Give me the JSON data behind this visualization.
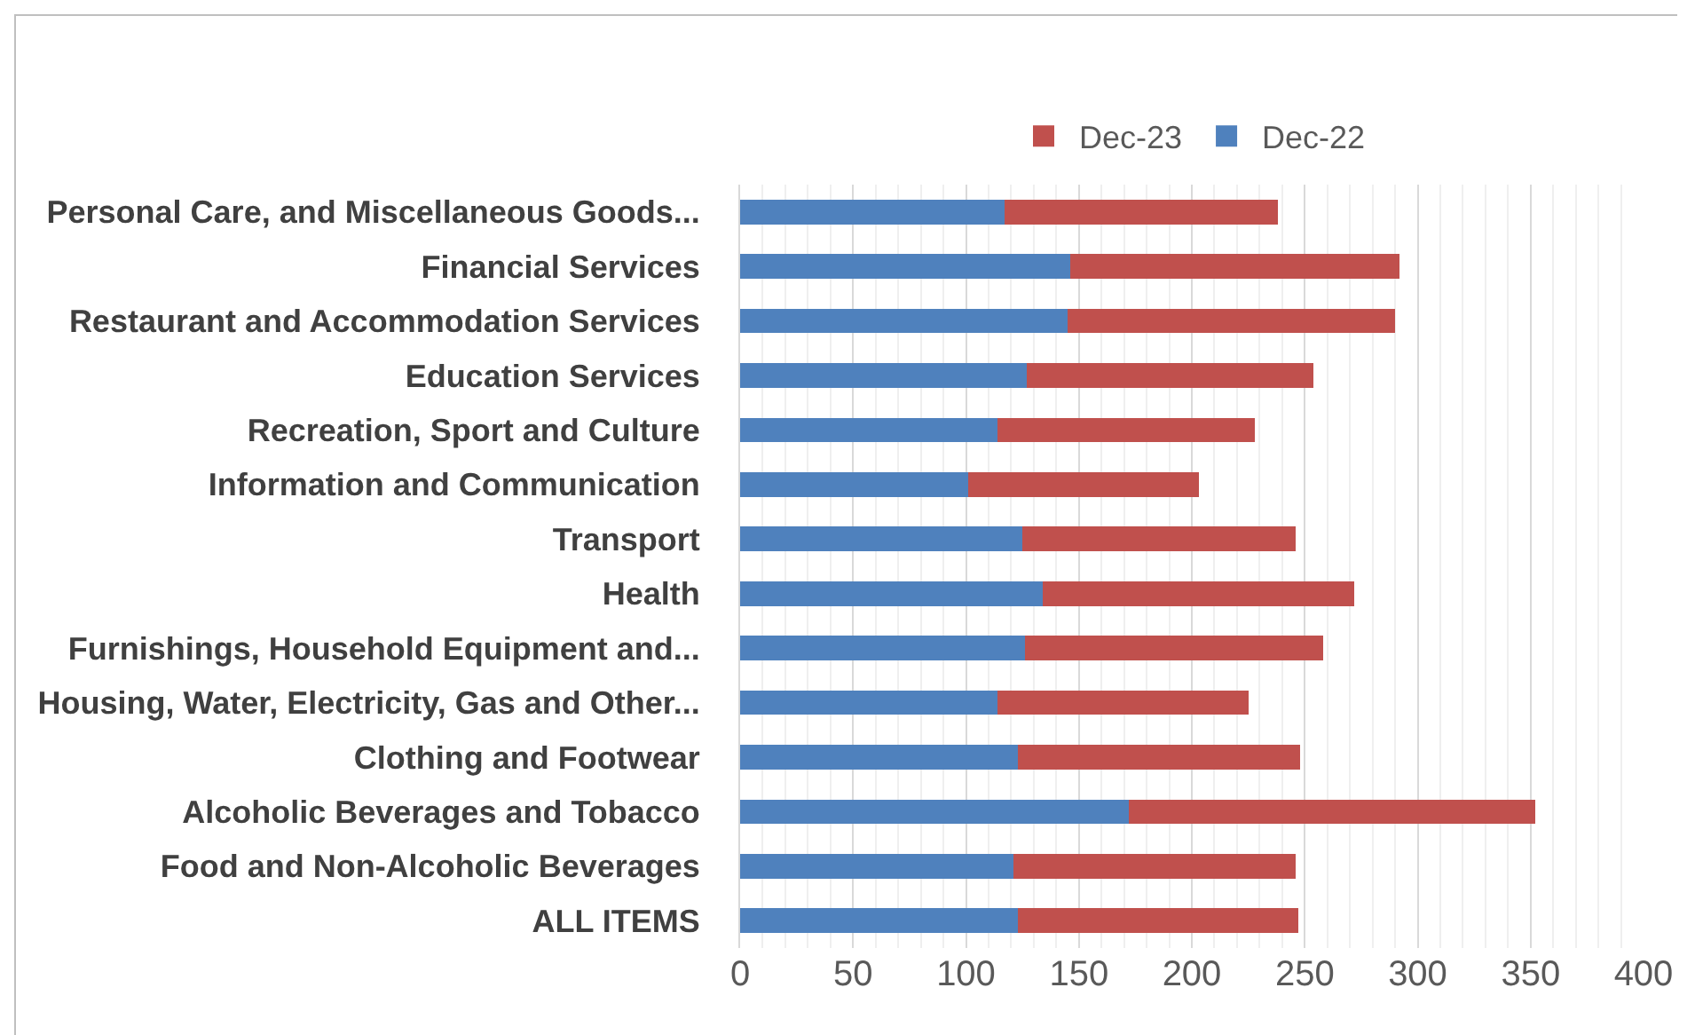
{
  "chart_data": {
    "type": "bar",
    "orientation": "horizontal",
    "stacked": true,
    "categories": [
      "Personal Care, and Miscellaneous Goods...",
      "Financial Services",
      "Restaurant and Accommodation Services",
      "Education Services",
      "Recreation, Sport and Culture",
      "Information and Communication",
      "Transport",
      "Health",
      "Furnishings, Household Equipment and...",
      "Housing, Water, Electricity, Gas and Other...",
      "Clothing and Footwear",
      "Alcoholic Beverages and Tobacco",
      "Food and Non-Alcoholic Beverages",
      "ALL ITEMS"
    ],
    "series": [
      {
        "name": "Dec-22",
        "color": "#4f81bd",
        "values": [
          117,
          146,
          145,
          127,
          114,
          101,
          125,
          134,
          126,
          114,
          123,
          172,
          121,
          123
        ]
      },
      {
        "name": "Dec-23",
        "color": "#c0504d",
        "values": [
          121,
          146,
          145,
          127,
          114,
          102,
          121,
          138,
          132,
          111,
          125,
          180,
          125,
          124
        ]
      }
    ],
    "xlim": [
      0,
      400
    ],
    "xticks": [
      0,
      50,
      100,
      150,
      200,
      250,
      300,
      350,
      400
    ],
    "grid": "x",
    "legend": "top"
  }
}
